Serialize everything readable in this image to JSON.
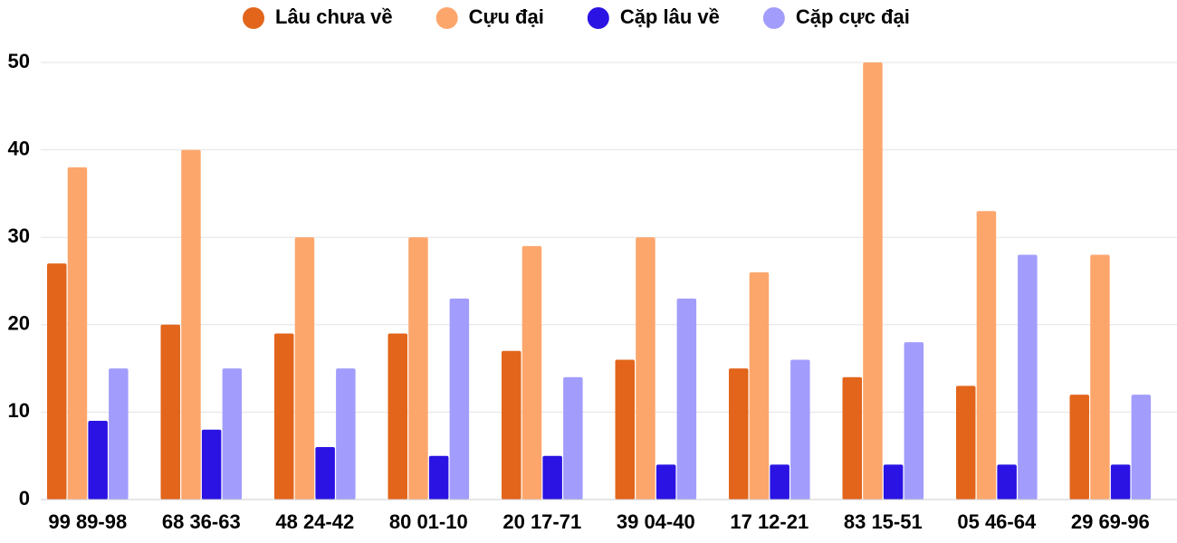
{
  "chart_data": {
    "type": "bar",
    "categories": [
      "99 89-98",
      "68 36-63",
      "48 24-42",
      "80 01-10",
      "20 17-71",
      "39 04-40",
      "17 12-21",
      "83 15-51",
      "05 46-64",
      "29 69-96"
    ],
    "series": [
      {
        "name": "Lâu chưa về",
        "color": "#e2651b",
        "values": [
          27,
          20,
          19,
          19,
          17,
          16,
          15,
          14,
          13,
          12
        ]
      },
      {
        "name": "Cựu đại",
        "color": "#fda66c",
        "values": [
          38,
          40,
          30,
          30,
          29,
          30,
          26,
          50,
          33,
          28
        ]
      },
      {
        "name": "Cặp lâu về",
        "color": "#2b13e3",
        "values": [
          9,
          8,
          6,
          5,
          5,
          4,
          4,
          4,
          4,
          4
        ]
      },
      {
        "name": "Cặp cực đại",
        "color": "#a29dfc",
        "values": [
          15,
          15,
          15,
          23,
          14,
          23,
          16,
          18,
          28,
          12
        ]
      }
    ],
    "ylim": [
      0,
      50
    ],
    "yticks": [
      0,
      10,
      20,
      30,
      40,
      50
    ],
    "grid": true
  }
}
